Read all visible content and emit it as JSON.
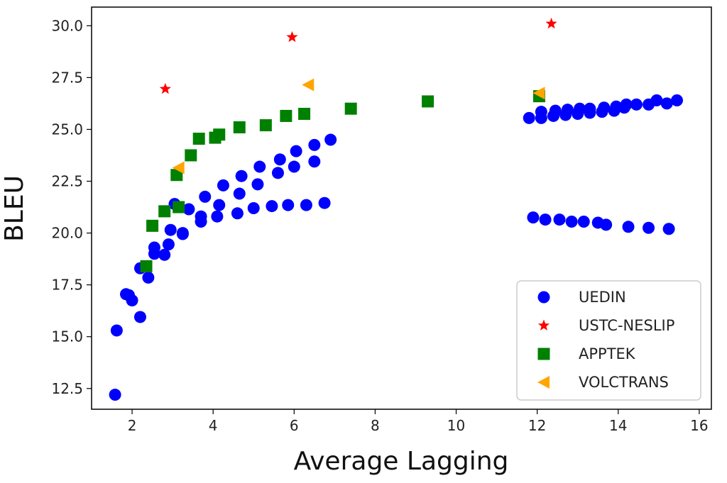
{
  "chart_data": {
    "type": "scatter",
    "title": "",
    "xlabel": "Average Lagging",
    "ylabel": "BLEU",
    "xlim": [
      1.0,
      16.3
    ],
    "ylim": [
      11.5,
      30.9
    ],
    "x_ticks": [
      2,
      4,
      6,
      8,
      10,
      12,
      14,
      16
    ],
    "x_tick_labels": [
      "2",
      "4",
      "6",
      "8",
      "10",
      "12",
      "14",
      "16"
    ],
    "y_ticks": [
      12.5,
      15.0,
      17.5,
      20.0,
      22.5,
      25.0,
      27.5,
      30.0
    ],
    "y_tick_labels": [
      "12.5",
      "15.0",
      "17.5",
      "20.0",
      "22.5",
      "25.0",
      "27.5",
      "30.0"
    ],
    "grid": false,
    "legend_position": "lower-right",
    "series": [
      {
        "name": "UEDIN",
        "marker": "circle",
        "color": "#0000ff",
        "points": [
          [
            1.58,
            12.2
          ],
          [
            1.62,
            15.3
          ],
          [
            1.85,
            17.05
          ],
          [
            1.92,
            17.0
          ],
          [
            2.0,
            16.75
          ],
          [
            2.2,
            15.95
          ],
          [
            2.2,
            18.3
          ],
          [
            2.4,
            17.85
          ],
          [
            2.55,
            19.0
          ],
          [
            2.55,
            19.3
          ],
          [
            2.8,
            18.95
          ],
          [
            2.9,
            19.45
          ],
          [
            2.95,
            20.15
          ],
          [
            3.05,
            21.4
          ],
          [
            3.25,
            19.95
          ],
          [
            3.25,
            20.0
          ],
          [
            3.4,
            21.15
          ],
          [
            3.7,
            20.55
          ],
          [
            3.7,
            20.8
          ],
          [
            3.8,
            21.75
          ],
          [
            4.1,
            20.8
          ],
          [
            4.15,
            21.35
          ],
          [
            4.25,
            22.3
          ],
          [
            4.6,
            20.95
          ],
          [
            4.65,
            21.9
          ],
          [
            4.7,
            22.75
          ],
          [
            5.0,
            21.2
          ],
          [
            5.1,
            22.35
          ],
          [
            5.15,
            23.2
          ],
          [
            5.45,
            21.3
          ],
          [
            5.6,
            22.9
          ],
          [
            5.65,
            23.55
          ],
          [
            5.85,
            21.35
          ],
          [
            6.0,
            23.2
          ],
          [
            6.05,
            23.95
          ],
          [
            6.3,
            21.35
          ],
          [
            6.5,
            23.45
          ],
          [
            6.5,
            24.25
          ],
          [
            6.75,
            21.45
          ],
          [
            6.9,
            24.5
          ],
          [
            11.8,
            25.55
          ],
          [
            11.9,
            20.75
          ],
          [
            12.1,
            25.55
          ],
          [
            12.1,
            25.85
          ],
          [
            12.2,
            20.65
          ],
          [
            12.4,
            25.65
          ],
          [
            12.45,
            25.9
          ],
          [
            12.55,
            20.65
          ],
          [
            12.7,
            25.7
          ],
          [
            12.75,
            25.95
          ],
          [
            12.85,
            20.55
          ],
          [
            13.0,
            25.75
          ],
          [
            13.05,
            26.0
          ],
          [
            13.15,
            20.55
          ],
          [
            13.3,
            25.8
          ],
          [
            13.3,
            26.0
          ],
          [
            13.5,
            20.5
          ],
          [
            13.6,
            25.85
          ],
          [
            13.65,
            26.05
          ],
          [
            13.7,
            20.4
          ],
          [
            13.9,
            25.9
          ],
          [
            13.95,
            26.1
          ],
          [
            14.15,
            26.05
          ],
          [
            14.2,
            26.2
          ],
          [
            14.25,
            20.3
          ],
          [
            14.45,
            26.2
          ],
          [
            14.75,
            26.2
          ],
          [
            14.75,
            20.25
          ],
          [
            14.95,
            26.4
          ],
          [
            15.2,
            26.25
          ],
          [
            15.25,
            20.2
          ],
          [
            15.45,
            26.4
          ]
        ]
      },
      {
        "name": "USTC-NESLIP",
        "marker": "star",
        "color": "#ff0000",
        "points": [
          [
            2.82,
            26.95
          ],
          [
            5.95,
            29.45
          ],
          [
            12.35,
            30.1
          ]
        ]
      },
      {
        "name": "APPTEK",
        "marker": "square",
        "color": "#008000",
        "points": [
          [
            2.35,
            18.4
          ],
          [
            2.5,
            20.35
          ],
          [
            2.8,
            21.05
          ],
          [
            3.1,
            22.8
          ],
          [
            3.15,
            21.25
          ],
          [
            3.45,
            23.75
          ],
          [
            3.65,
            24.55
          ],
          [
            4.05,
            24.6
          ],
          [
            4.15,
            24.75
          ],
          [
            4.65,
            25.1
          ],
          [
            5.3,
            25.2
          ],
          [
            5.8,
            25.65
          ],
          [
            6.25,
            25.75
          ],
          [
            7.4,
            26.0
          ],
          [
            9.3,
            26.35
          ],
          [
            12.05,
            26.6
          ]
        ]
      },
      {
        "name": "VOLCTRANS",
        "marker": "triangle-left",
        "color": "#ffa500",
        "points": [
          [
            3.15,
            23.15
          ],
          [
            6.35,
            27.15
          ],
          [
            12.05,
            26.75
          ]
        ]
      }
    ]
  }
}
